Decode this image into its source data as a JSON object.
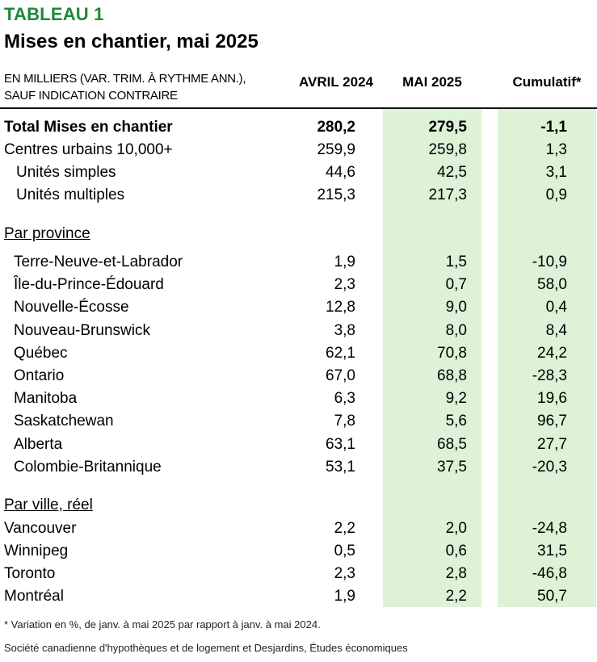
{
  "table_tag": "TABLEAU 1",
  "title": "Mises en chantier, mai 2025",
  "subtitle_line1": "EN MILLIERS (VAR. TRIM. À RYTHME ANN.),",
  "subtitle_line2": "SAUF INDICATION CONTRAIRE",
  "columns": [
    "AVRIL 2024",
    "MAI 2025",
    "Cumulatif*"
  ],
  "highlight_color": "#ddf2d6",
  "tag_color": "#1a8a3a",
  "total": {
    "label": "Total Mises en chantier",
    "values": [
      "280,2",
      "279,5",
      "-1,1"
    ]
  },
  "urban": [
    {
      "label": "Centres urbains 10,000+",
      "values": [
        "259,9",
        "259,8",
        "1,3"
      ]
    },
    {
      "label": "Unités simples",
      "values": [
        "44,6",
        "42,5",
        "3,1"
      ]
    },
    {
      "label": "Unités multiples",
      "values": [
        "215,3",
        "217,3",
        "0,9"
      ]
    }
  ],
  "province_heading": "Par province",
  "provinces": [
    {
      "label": "Terre-Neuve-et-Labrador",
      "values": [
        "1,9",
        "1,5",
        "-10,9"
      ]
    },
    {
      "label": "Île-du-Prince-Édouard",
      "values": [
        "2,3",
        "0,7",
        "58,0"
      ]
    },
    {
      "label": "Nouvelle-Écosse",
      "values": [
        "12,8",
        "9,0",
        "0,4"
      ]
    },
    {
      "label": "Nouveau-Brunswick",
      "values": [
        "3,8",
        "8,0",
        "8,4"
      ]
    },
    {
      "label": "Québec",
      "values": [
        "62,1",
        "70,8",
        "24,2"
      ]
    },
    {
      "label": "Ontario",
      "values": [
        "67,0",
        "68,8",
        "-28,3"
      ]
    },
    {
      "label": "Manitoba",
      "values": [
        "6,3",
        "9,2",
        "19,6"
      ]
    },
    {
      "label": "Saskatchewan",
      "values": [
        "7,8",
        "5,6",
        "96,7"
      ]
    },
    {
      "label": "Alberta",
      "values": [
        "63,1",
        "68,5",
        "27,7"
      ]
    },
    {
      "label": "Colombie-Britannique",
      "values": [
        "53,1",
        "37,5",
        "-20,3"
      ]
    }
  ],
  "city_heading": "Par ville, réel",
  "cities": [
    {
      "label": "Vancouver",
      "values": [
        "2,2",
        "2,0",
        "-24,8"
      ]
    },
    {
      "label": "Winnipeg",
      "values": [
        "0,5",
        "0,6",
        "31,5"
      ]
    },
    {
      "label": "Toronto",
      "values": [
        "2,3",
        "2,8",
        "-46,8"
      ]
    },
    {
      "label": "Montréal",
      "values": [
        "1,9",
        "2,2",
        "50,7"
      ]
    }
  ],
  "footnote": "* Variation en %, de janv. à mai 2025 par rapport à janv. à mai 2024.",
  "source": "Société canadienne d'hypothèques et de logement et Desjardins, Études économiques"
}
